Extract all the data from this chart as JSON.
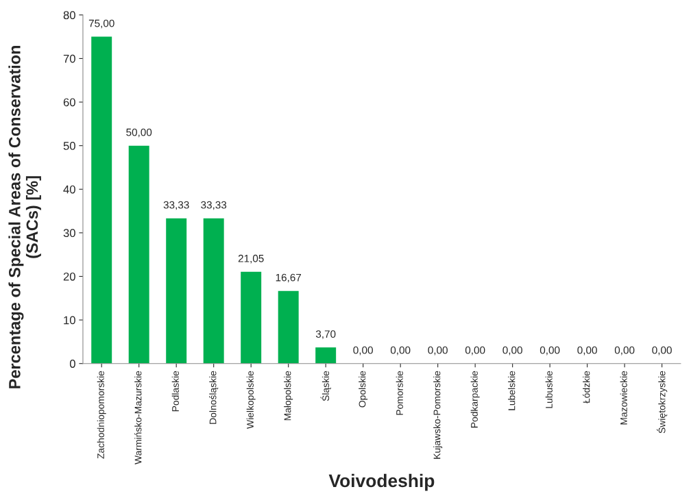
{
  "chart_data": {
    "type": "bar",
    "xlabel": "Voivodeship",
    "ylabel": "Percentage of Special Areas of Conservation\n(SACs) [%]",
    "categories": [
      "Zachodniopomorskie",
      "Warmińsko-Mazurskie",
      "Podlaskie",
      "Dolnośląskie",
      "Wielkopolskie",
      "Małopolskie",
      "Śląskie",
      "Opolskie",
      "Pomorskie",
      "Kujawsko-Pomorskie",
      "Podkarpackie",
      "Lubelskie",
      "Lubuskie",
      "Łódzkie",
      "Mazowieckie",
      "Świętokrzyskie"
    ],
    "values": [
      75,
      50,
      33.33,
      33.33,
      21.05,
      16.67,
      3.7,
      0,
      0,
      0,
      0,
      0,
      0,
      0,
      0,
      0
    ],
    "value_labels": [
      "75,00",
      "50,00",
      "33,33",
      "33,33",
      "21,05",
      "16,67",
      "3,70",
      "0,00",
      "0,00",
      "0,00",
      "0,00",
      "0,00",
      "0,00",
      "0,00",
      "0,00",
      "0,00"
    ],
    "color": "#00b050",
    "ylim": [
      0,
      80
    ],
    "yticks": [
      0,
      10,
      20,
      30,
      40,
      50,
      60,
      70,
      80
    ],
    "grid": false,
    "legend": false
  }
}
